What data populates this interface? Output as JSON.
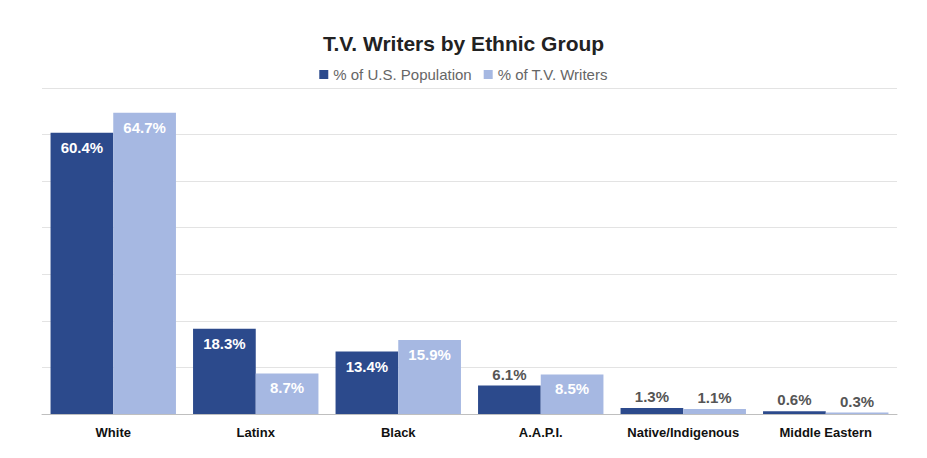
{
  "chart_data": {
    "type": "bar",
    "title": "T.V. Writers by Ethnic Group",
    "categories": [
      "White",
      "Latinx",
      "Black",
      "A.A.P.I.",
      "Native/Indigenous",
      "Middle Eastern"
    ],
    "series": [
      {
        "name": "% of U.S. Population",
        "color": "#2c4a8c",
        "values": [
          60.4,
          18.3,
          13.4,
          6.1,
          1.3,
          0.6
        ],
        "value_labels": [
          "60.4%",
          "18.3%",
          "13.4%",
          "6.1%",
          "1.3%",
          "0.6%"
        ]
      },
      {
        "name": "% of T.V. Writers",
        "color": "#a6b8e2",
        "values": [
          64.7,
          8.7,
          15.9,
          8.5,
          1.1,
          0.3
        ],
        "value_labels": [
          "64.7%",
          "8.7%",
          "15.9%",
          "8.5%",
          "1.1%",
          "0.3%"
        ]
      }
    ],
    "ylim": [
      0,
      70
    ],
    "yticks": [
      0,
      10,
      20,
      30,
      40,
      50,
      60,
      70
    ],
    "grid": true,
    "legend": "top",
    "data_labels": true,
    "tick_labels": "x"
  }
}
